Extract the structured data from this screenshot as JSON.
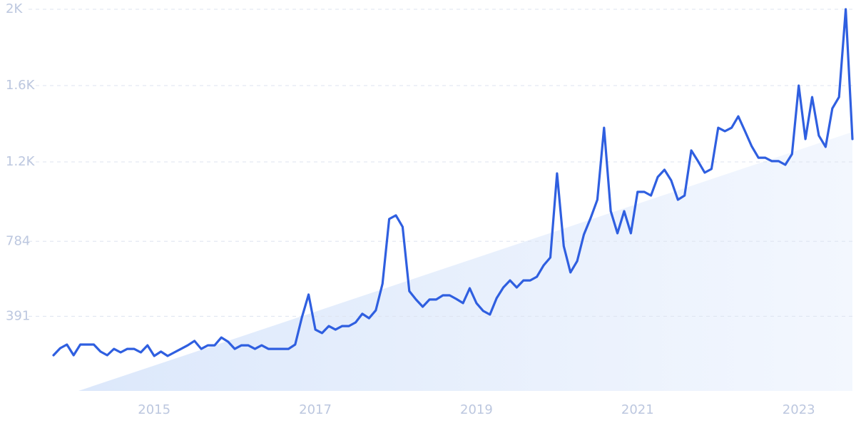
{
  "chart_data": {
    "type": "line",
    "categories": [
      null,
      null,
      null,
      null,
      null,
      null,
      null,
      null,
      null,
      null,
      null,
      null,
      null,
      null,
      null,
      "2015",
      null,
      null,
      null,
      null,
      null,
      null,
      null,
      null,
      null,
      null,
      null,
      null,
      null,
      null,
      null,
      null,
      null,
      null,
      null,
      null,
      null,
      null,
      null,
      "2017",
      null,
      null,
      null,
      null,
      null,
      null,
      null,
      null,
      null,
      null,
      null,
      null,
      null,
      null,
      null,
      null,
      null,
      null,
      null,
      null,
      null,
      null,
      null,
      "2019",
      null,
      null,
      null,
      null,
      null,
      null,
      null,
      null,
      null,
      null,
      null,
      null,
      null,
      null,
      null,
      null,
      null,
      null,
      null,
      null,
      null,
      null,
      null,
      "2021",
      null,
      null,
      null,
      null,
      null,
      null,
      null,
      null,
      null,
      null,
      null,
      null,
      null,
      null,
      null,
      null,
      null,
      null,
      null,
      null,
      null,
      null,
      null,
      "2023",
      null,
      null,
      null,
      null,
      null,
      null,
      null,
      null
    ],
    "series": [
      {
        "color": "#2f5fe0",
        "values": [
          187,
          224,
          243,
          187,
          243,
          243,
          243,
          206,
          187,
          220,
          202,
          220,
          220,
          202,
          239,
          183,
          206,
          183,
          202,
          220,
          239,
          262,
          220,
          239,
          239,
          280,
          258,
          220,
          239,
          239,
          220,
          239,
          220,
          220,
          220,
          220,
          243,
          385,
          505,
          321,
          303,
          340,
          321,
          340,
          340,
          359,
          404,
          381,
          422,
          561,
          901,
          920,
          860,
          523,
          479,
          441,
          479,
          479,
          501,
          501,
          482,
          460,
          538,
          460,
          419,
          400,
          486,
          542,
          579,
          542,
          579,
          579,
          598,
          658,
          699,
          1140,
          759,
          621,
          680,
          819,
          905,
          1002,
          1379,
          942,
          826,
          942,
          826,
          1043,
          1043,
          1024,
          1121,
          1159,
          1103,
          1002,
          1024,
          1260,
          1204,
          1144,
          1163,
          1379,
          1361,
          1379,
          1439,
          1361,
          1282,
          1222,
          1222,
          1204,
          1204,
          1185,
          1241,
          1600,
          1320,
          1540,
          1338,
          1279,
          1480,
          1540,
          2000,
          1320
        ]
      }
    ],
    "ylim": [
      0,
      2000
    ],
    "yticks": [
      391,
      784,
      {
        "value": 1200,
        "label": "1.2K"
      },
      {
        "value": 1600,
        "label": "1.6K"
      },
      {
        "value": 2000,
        "label": "2K"
      }
    ],
    "grid": true
  }
}
